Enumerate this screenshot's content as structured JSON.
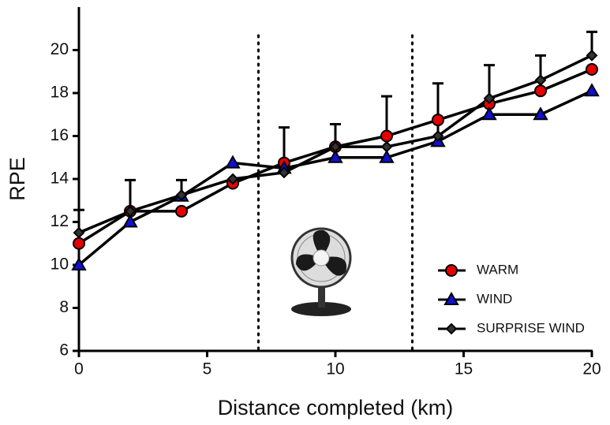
{
  "chart_data": {
    "type": "line",
    "x_label": "Distance completed (km)",
    "y_label": "RPE",
    "x": [
      0,
      2,
      4,
      6,
      8,
      10,
      12,
      14,
      16,
      18,
      20
    ],
    "series": [
      {
        "name": "WARM",
        "color": "#e60000",
        "marker": "circle",
        "values": [
          11,
          12.5,
          12.5,
          13.8,
          14.75,
          15.5,
          16,
          16.75,
          17.5,
          18.1,
          19.1
        ]
      },
      {
        "name": "WIND",
        "color": "#1010d0",
        "marker": "triangle",
        "values": [
          10,
          12,
          13.2,
          14.75,
          14.5,
          15,
          15,
          15.75,
          17,
          17,
          18.1
        ]
      },
      {
        "name": "SURPRISE WIND",
        "color": "#333333",
        "marker": "diamond",
        "values": [
          11.5,
          12.5,
          13.25,
          14,
          14.3,
          15.5,
          15.5,
          16,
          17.75,
          18.6,
          19.75
        ],
        "error": [
          1.06,
          1.45,
          0.7,
          null,
          2.1,
          1.05,
          2.35,
          2.45,
          1.55,
          1.15,
          1.1
        ]
      }
    ],
    "xlim": [
      0,
      20
    ],
    "xticks": [
      0,
      5,
      10,
      15,
      20
    ],
    "ylim": [
      6,
      22
    ],
    "yticks": [
      6,
      8,
      10,
      12,
      14,
      16,
      18,
      20
    ],
    "vlines": [
      7,
      13
    ],
    "legend": "lower right"
  }
}
